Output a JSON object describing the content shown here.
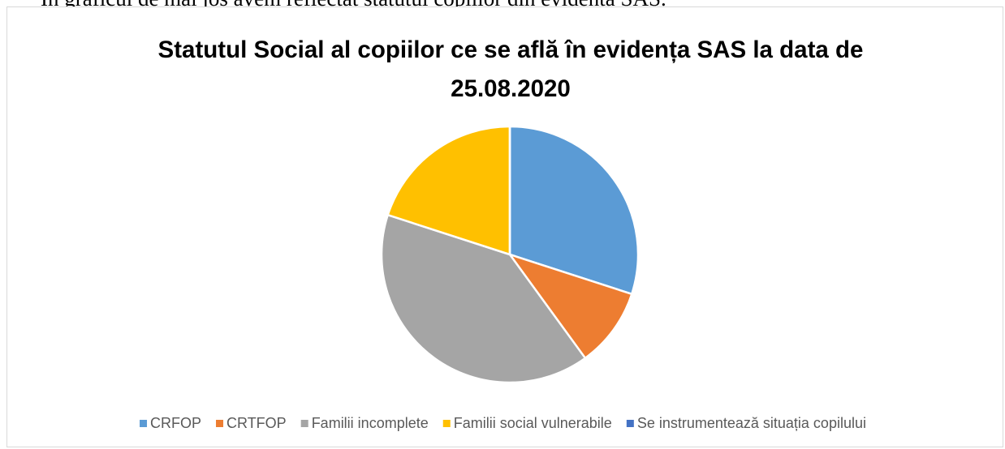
{
  "caption": "În graficul de mai jos avem reflectat statutul copiilor din evidența SAS.",
  "chart_data": {
    "type": "pie",
    "title": "Statutul Social al copiilor ce se află în evidența SAS la data de 25.08.2020",
    "categories": [
      "CRFOP",
      "CRTFOP",
      "Familii incomplete",
      "Familii social vulnerabile",
      "Se instrumentează situația copilului"
    ],
    "values": [
      30,
      10,
      40,
      20,
      0
    ],
    "colors": [
      "#5b9bd5",
      "#ed7d31",
      "#a5a5a5",
      "#ffc000",
      "#4472c4"
    ],
    "legend": "bottom"
  }
}
